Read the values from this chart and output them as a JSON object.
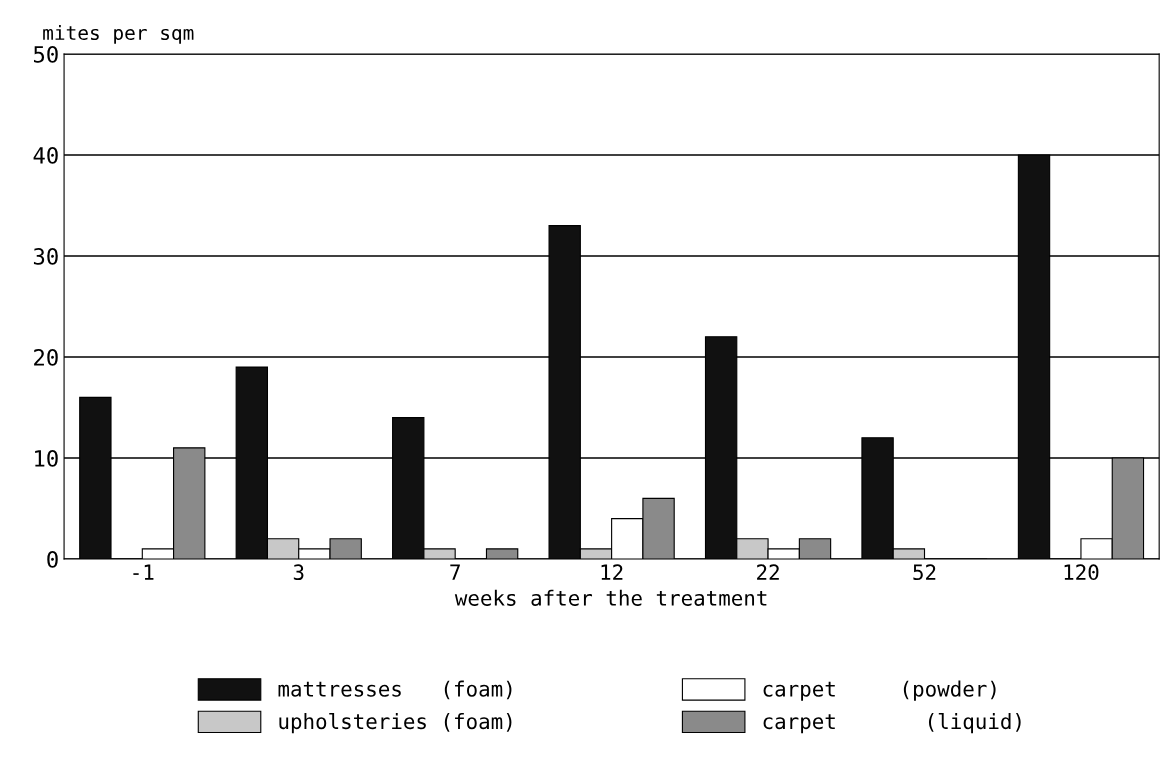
{
  "chart_data": {
    "type": "bar",
    "ylabel": "mites per sqm",
    "xlabel": "weeks after the treatment",
    "categories": [
      "-1",
      "3",
      "7",
      "12",
      "22",
      "52",
      "120"
    ],
    "series": [
      {
        "name": "mattresses   (foam)",
        "color": "#111111",
        "values": [
          16,
          19,
          14,
          33,
          22,
          12,
          40
        ]
      },
      {
        "name": "upholsteries (foam)",
        "color": "#c8c8c8",
        "values": [
          0,
          2,
          1,
          1,
          2,
          1,
          0
        ]
      },
      {
        "name": "carpet     (powder)",
        "color": "#ffffff",
        "values": [
          1,
          1,
          0,
          4,
          1,
          0,
          2
        ]
      },
      {
        "name": "carpet       (liquid)",
        "color": "#8a8a8a",
        "values": [
          11,
          2,
          1,
          6,
          2,
          0,
          10
        ]
      }
    ],
    "ylim": [
      0,
      50
    ],
    "yticks": [
      0,
      10,
      20,
      30,
      40,
      50
    ],
    "grid": "y",
    "legend": "bottom"
  }
}
